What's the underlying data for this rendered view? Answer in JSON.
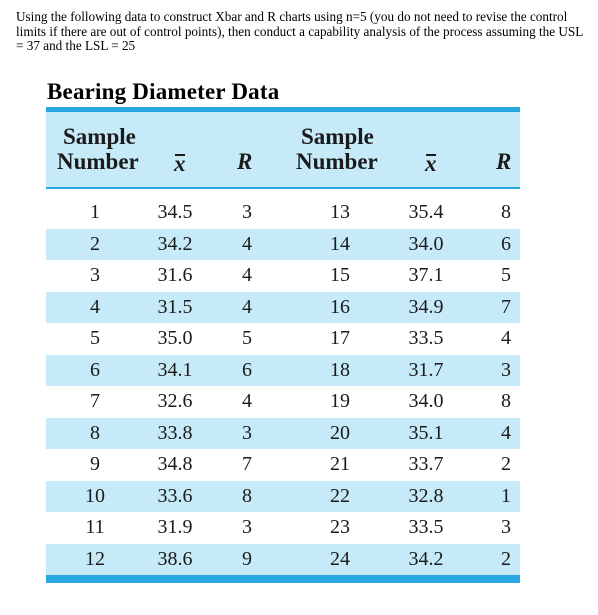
{
  "instructions": "Using the following data to construct Xbar and R charts using n=5 (you do not need to revise the control limits if there are out of control points), then conduct a capability analysis of the process assuming the USL = 37 and the LSL = 25",
  "table": {
    "title": "Bearing Diameter Data",
    "headers": {
      "sample_line1": "Sample",
      "number_line2": "Number",
      "xbar": "x",
      "range": "R"
    },
    "rows": [
      {
        "left": {
          "n": "1",
          "xbar": "34.5",
          "r": "3"
        },
        "right": {
          "n": "13",
          "xbar": "35.4",
          "r": "8"
        }
      },
      {
        "left": {
          "n": "2",
          "xbar": "34.2",
          "r": "4"
        },
        "right": {
          "n": "14",
          "xbar": "34.0",
          "r": "6"
        }
      },
      {
        "left": {
          "n": "3",
          "xbar": "31.6",
          "r": "4"
        },
        "right": {
          "n": "15",
          "xbar": "37.1",
          "r": "5"
        }
      },
      {
        "left": {
          "n": "4",
          "xbar": "31.5",
          "r": "4"
        },
        "right": {
          "n": "16",
          "xbar": "34.9",
          "r": "7"
        }
      },
      {
        "left": {
          "n": "5",
          "xbar": "35.0",
          "r": "5"
        },
        "right": {
          "n": "17",
          "xbar": "33.5",
          "r": "4"
        }
      },
      {
        "left": {
          "n": "6",
          "xbar": "34.1",
          "r": "6"
        },
        "right": {
          "n": "18",
          "xbar": "31.7",
          "r": "3"
        }
      },
      {
        "left": {
          "n": "7",
          "xbar": "32.6",
          "r": "4"
        },
        "right": {
          "n": "19",
          "xbar": "34.0",
          "r": "8"
        }
      },
      {
        "left": {
          "n": "8",
          "xbar": "33.8",
          "r": "3"
        },
        "right": {
          "n": "20",
          "xbar": "35.1",
          "r": "4"
        }
      },
      {
        "left": {
          "n": "9",
          "xbar": "34.8",
          "r": "7"
        },
        "right": {
          "n": "21",
          "xbar": "33.7",
          "r": "2"
        }
      },
      {
        "left": {
          "n": "10",
          "xbar": "33.6",
          "r": "8"
        },
        "right": {
          "n": "22",
          "xbar": "32.8",
          "r": "1"
        }
      },
      {
        "left": {
          "n": "11",
          "xbar": "31.9",
          "r": "3"
        },
        "right": {
          "n": "23",
          "xbar": "33.5",
          "r": "3"
        }
      },
      {
        "left": {
          "n": "12",
          "xbar": "38.6",
          "r": "9"
        },
        "right": {
          "n": "24",
          "xbar": "34.2",
          "r": "2"
        }
      }
    ],
    "colors": {
      "accent_rule": "#27a8e0",
      "band_fill": "#c6eaf8"
    }
  }
}
